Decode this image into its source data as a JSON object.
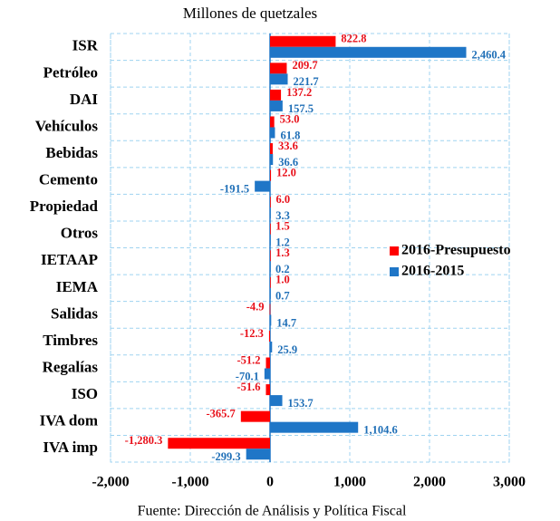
{
  "chart_data": {
    "type": "hbar",
    "title": "Millones de quetzales",
    "source": "Fuente: Dirección de Análisis y Política Fiscal",
    "categories": [
      "ISR",
      "Petróleo",
      "DAI",
      "Vehículos",
      "Bebidas",
      "Cemento",
      "Propiedad",
      "Otros",
      "IETAAP",
      "IEMA",
      "Salidas",
      "Timbres",
      "Regalías",
      "ISO",
      "IVA dom",
      "IVA imp"
    ],
    "series": [
      {
        "name": "2016-Presupuesto",
        "color": "#ff0000",
        "label_color": "#e8101a",
        "values": [
          822.8,
          209.7,
          137.2,
          53.0,
          33.6,
          12.0,
          6.0,
          1.5,
          1.3,
          1.0,
          -4.9,
          -12.3,
          -51.2,
          -51.6,
          -365.7,
          -1280.3
        ],
        "value_labels": [
          "822.8",
          "209.7",
          "137.2",
          "53.0",
          "33.6",
          "12.0",
          "6.0",
          "1.5",
          "1.3",
          "1.0",
          "-4.9",
          "-12.3",
          "-51.2",
          "-51.6",
          "-365.7",
          "-1,280.3"
        ]
      },
      {
        "name": "2016-2015",
        "color": "#1f76c7",
        "label_color": "#1f6fb7",
        "values": [
          2460.4,
          221.7,
          157.5,
          61.8,
          36.6,
          -191.5,
          3.3,
          1.2,
          0.2,
          0.7,
          14.7,
          25.9,
          -70.1,
          153.7,
          1104.6,
          -299.3
        ],
        "value_labels": [
          "2,460.4",
          "221.7",
          "157.5",
          "61.8",
          "36.6",
          "-191.5",
          "3.3",
          "1.2",
          "0.2",
          "0.7",
          "14.7",
          "25.9",
          "-70.1",
          "153.7",
          "1,104.6",
          "-299.3"
        ]
      }
    ],
    "xlim": [
      -2000,
      3000
    ],
    "xticks": [
      {
        "value": -2000,
        "label": "-2,000"
      },
      {
        "value": -1000,
        "label": "-1,000"
      },
      0,
      {
        "value": 1000,
        "label": "1,000"
      },
      {
        "value": 2000,
        "label": "2,000"
      },
      {
        "value": 3000,
        "label": "3,000"
      }
    ],
    "grid": true,
    "legend": "right"
  }
}
